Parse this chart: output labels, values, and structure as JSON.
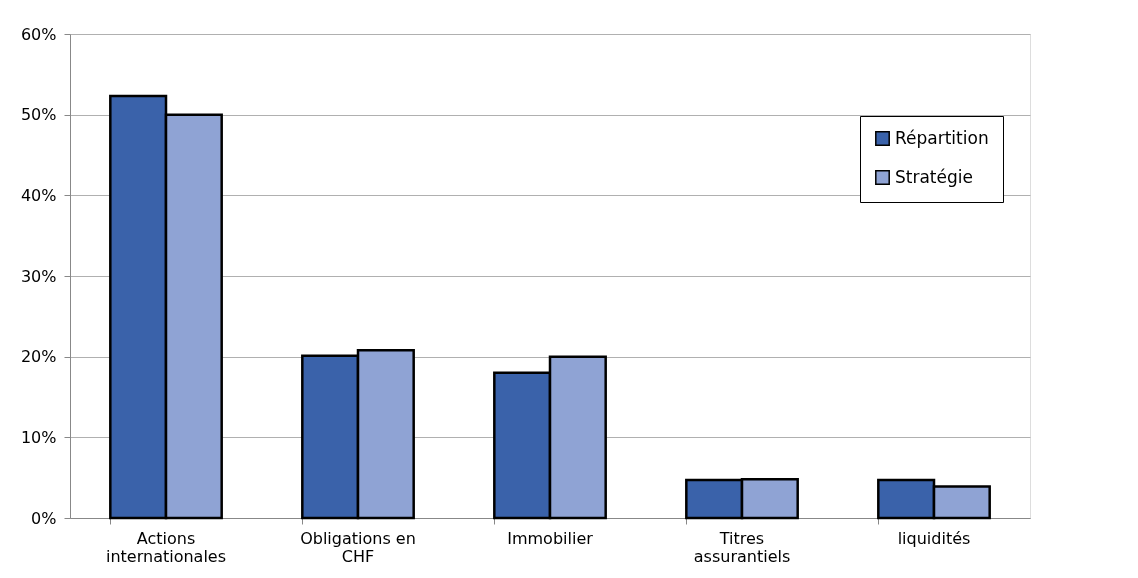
{
  "chart_data": {
    "type": "bar",
    "categories": [
      "Actions internationales",
      "Obligations en CHF",
      "Immobilier",
      "Titres assurantiels",
      "liquidités"
    ],
    "series": [
      {
        "name": "Répartition",
        "color": "#3a62aa",
        "values": [
          52.3,
          20.1,
          18.0,
          4.7,
          4.7
        ]
      },
      {
        "name": "Stratégie",
        "color": "#8fa3d4",
        "values": [
          50.0,
          20.8,
          20.0,
          4.8,
          3.9
        ]
      }
    ],
    "ylim": [
      0,
      60
    ],
    "yticks": [
      {
        "value": 0,
        "label": "0%"
      },
      {
        "value": 10,
        "label": "10%"
      },
      {
        "value": 20,
        "label": "20%"
      },
      {
        "value": 30,
        "label": "30%"
      },
      {
        "value": 40,
        "label": "40%"
      },
      {
        "value": 50,
        "label": "50%"
      },
      {
        "value": 60,
        "label": "60%"
      }
    ],
    "grid": "y",
    "legend": "top right"
  }
}
